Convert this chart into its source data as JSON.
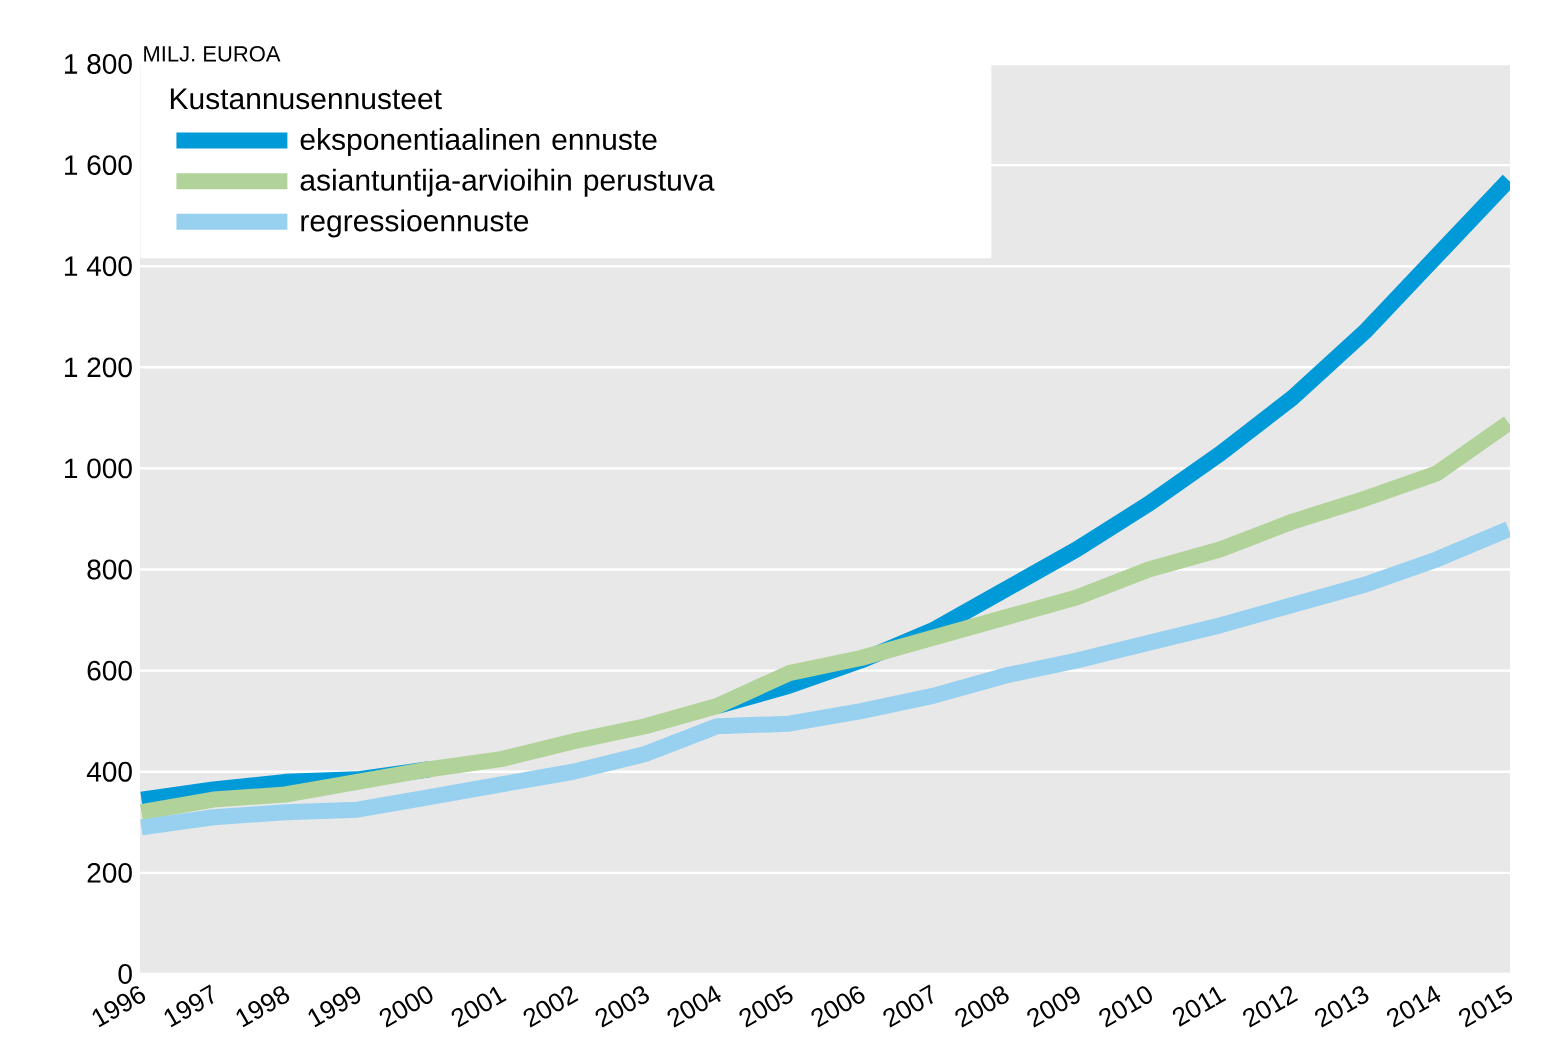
{
  "chart_data": {
    "type": "line",
    "ylabel": "MILJ. EUROA",
    "legend_title": "Kustannusennusteet",
    "categories": [
      "1996",
      "1997",
      "1998",
      "1999",
      "2000",
      "2001",
      "2002",
      "2003",
      "2004",
      "2005",
      "2006",
      "2007",
      "2008",
      "2009",
      "2010",
      "2011",
      "2012",
      "2013",
      "2014",
      "2015"
    ],
    "series": [
      {
        "name": "eksponentiaalinen ennuste",
        "color": "#009ad8",
        "values": [
          345,
          365,
          380,
          385,
          405,
          null,
          null,
          null,
          530,
          570,
          620,
          680,
          760,
          840,
          930,
          1030,
          1140,
          1270,
          1420,
          1570
        ]
      },
      {
        "name": "asiantuntija-arvioihin perustuva",
        "color": "#b1d39a",
        "values": [
          320,
          345,
          355,
          380,
          405,
          425,
          460,
          490,
          530,
          595,
          625,
          665,
          705,
          745,
          800,
          840,
          895,
          940,
          990,
          1090
        ]
      },
      {
        "name": "regressioennuste",
        "color": "#97d1ef",
        "values": [
          290,
          310,
          320,
          325,
          350,
          375,
          400,
          435,
          490,
          495,
          520,
          550,
          590,
          620,
          655,
          690,
          730,
          770,
          820,
          880
        ]
      }
    ],
    "ylim": [
      0,
      1800
    ],
    "yticks": [
      0,
      200,
      400,
      600,
      800,
      {
        "value": 1000,
        "label": "1 000"
      },
      {
        "value": 1200,
        "label": "1 200"
      },
      {
        "value": 1400,
        "label": "1 400"
      },
      {
        "value": 1600,
        "label": "1 600"
      },
      {
        "value": 1800,
        "label": "1 800"
      }
    ],
    "grid": "y",
    "legend": "top left",
    "marker": "none",
    "line_style": "solid"
  }
}
